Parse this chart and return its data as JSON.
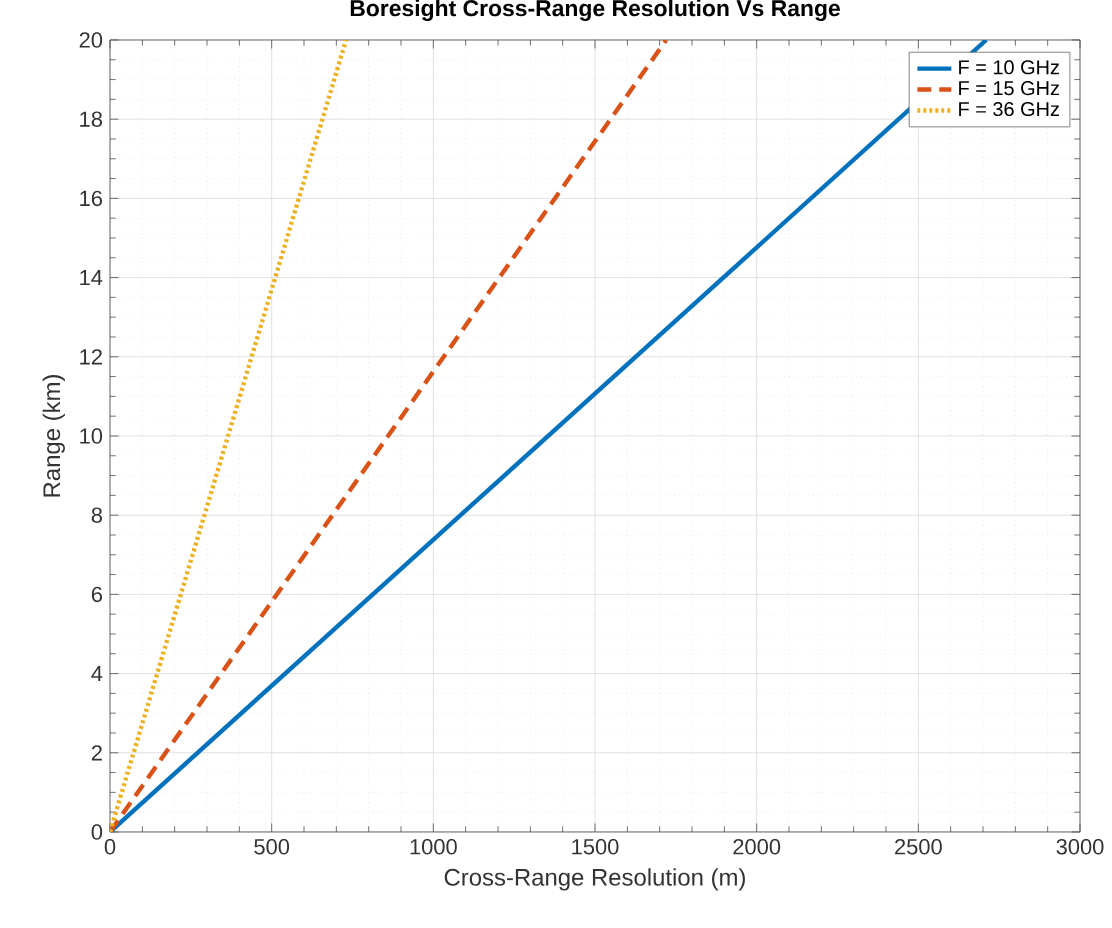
{
  "chart_data": {
    "type": "line",
    "title": "Boresight Cross-Range Resolution Vs Range",
    "xlabel": "Cross-Range Resolution (m)",
    "ylabel": "Range (km)",
    "xlim": [
      0,
      3000
    ],
    "ylim": [
      0,
      20
    ],
    "xticks": [
      0,
      500,
      1000,
      1500,
      2000,
      2500,
      3000
    ],
    "yticks": [
      0,
      2,
      4,
      6,
      8,
      10,
      12,
      14,
      16,
      18,
      20
    ],
    "grid": true,
    "legend": "top right",
    "series": [
      {
        "name": "F = 10 GHz",
        "color": "#0072bd",
        "line_style": "solid",
        "x": [
          0,
          2710
        ],
        "values": [
          0,
          20
        ]
      },
      {
        "name": "F = 15 GHz",
        "color": "#d95319",
        "line_style": "dashed",
        "x": [
          0,
          1720
        ],
        "values": [
          0,
          20
        ]
      },
      {
        "name": "F = 36 GHz",
        "color": "#edb120",
        "line_style": "dotted",
        "x": [
          0,
          730
        ],
        "values": [
          0,
          20
        ]
      }
    ]
  }
}
